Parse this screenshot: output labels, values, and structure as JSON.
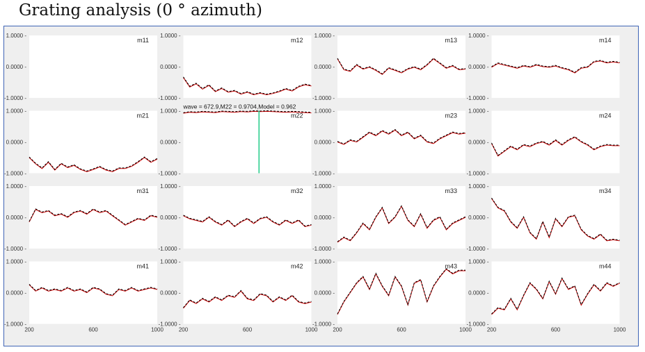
{
  "page": {
    "title": "Grating analysis (0 ° azimuth)"
  },
  "chart_data": {
    "type": "line",
    "grid_rows": 4,
    "grid_cols": 4,
    "xlim": [
      200,
      1000
    ],
    "ylim": [
      -1,
      1
    ],
    "x_ticks": [
      "200",
      "600",
      "1000"
    ],
    "y_ticks": [
      "1.0000",
      "0.0000",
      "-1.0000"
    ],
    "colors": {
      "measured": "#cc0000",
      "model": "#000000",
      "cursor": "#22cc88",
      "frame": "#3f64b5"
    },
    "series_names": [],
    "tooltip": "wave = 672.9,M22 = 0.9704,Model = 0.962",
    "cursor": {
      "panel": "m22",
      "x": 672.9
    },
    "panels": [
      {
        "label": "m11",
        "x": [],
        "y": []
      },
      {
        "label": "m12",
        "x": [
          200,
          240,
          280,
          320,
          360,
          400,
          440,
          480,
          520,
          560,
          600,
          640,
          680,
          720,
          760,
          800,
          840,
          880,
          920,
          960,
          1000
        ],
        "y": [
          -0.35,
          -0.65,
          -0.55,
          -0.72,
          -0.6,
          -0.8,
          -0.7,
          -0.82,
          -0.78,
          -0.88,
          -0.82,
          -0.9,
          -0.85,
          -0.9,
          -0.86,
          -0.8,
          -0.72,
          -0.78,
          -0.65,
          -0.58,
          -0.62
        ]
      },
      {
        "label": "m13",
        "x": [
          200,
          240,
          280,
          320,
          360,
          400,
          440,
          480,
          520,
          560,
          600,
          640,
          680,
          720,
          760,
          800,
          840,
          880,
          920,
          960,
          1000
        ],
        "y": [
          0.25,
          -0.1,
          -0.15,
          0.05,
          -0.08,
          -0.02,
          -0.12,
          -0.25,
          -0.05,
          -0.12,
          -0.2,
          -0.08,
          -0.02,
          -0.1,
          0.05,
          0.25,
          0.1,
          -0.05,
          0.02,
          -0.1,
          -0.08
        ]
      },
      {
        "label": "m14",
        "x": [
          200,
          240,
          280,
          320,
          360,
          400,
          440,
          480,
          520,
          560,
          600,
          640,
          680,
          720,
          760,
          800,
          840,
          880,
          920,
          960,
          1000
        ],
        "y": [
          -0.02,
          0.1,
          0.05,
          0.0,
          -0.05,
          0.02,
          -0.02,
          0.05,
          0.0,
          -0.02,
          0.02,
          -0.05,
          -0.1,
          -0.2,
          -0.05,
          -0.02,
          0.15,
          0.18,
          0.12,
          0.15,
          0.12
        ]
      },
      {
        "label": "m21",
        "x": [
          200,
          240,
          280,
          320,
          360,
          400,
          440,
          480,
          520,
          560,
          600,
          640,
          680,
          720,
          760,
          800,
          840,
          880,
          920,
          960,
          1000
        ],
        "y": [
          -0.5,
          -0.7,
          -0.85,
          -0.65,
          -0.9,
          -0.7,
          -0.82,
          -0.75,
          -0.88,
          -0.95,
          -0.88,
          -0.8,
          -0.9,
          -0.95,
          -0.85,
          -0.85,
          -0.78,
          -0.65,
          -0.5,
          -0.65,
          -0.55
        ]
      },
      {
        "label": "m22",
        "x": [
          200,
          240,
          280,
          320,
          360,
          400,
          440,
          480,
          520,
          560,
          600,
          640,
          680,
          720,
          760,
          800,
          840,
          880,
          920,
          960,
          1000
        ],
        "y": [
          0.92,
          0.95,
          0.94,
          0.96,
          0.95,
          0.94,
          0.97,
          0.96,
          0.95,
          0.97,
          0.96,
          0.98,
          0.97,
          0.98,
          0.97,
          0.96,
          0.95,
          0.96,
          0.95,
          0.94,
          0.93
        ]
      },
      {
        "label": "m23",
        "x": [
          200,
          240,
          280,
          320,
          360,
          400,
          440,
          480,
          520,
          560,
          600,
          640,
          680,
          720,
          760,
          800,
          840,
          880,
          920,
          960,
          1000
        ],
        "y": [
          0.0,
          -0.08,
          0.05,
          0.0,
          0.15,
          0.3,
          0.2,
          0.35,
          0.25,
          0.38,
          0.2,
          0.3,
          0.1,
          0.2,
          0.0,
          -0.05,
          0.1,
          0.2,
          0.3,
          0.25,
          0.28
        ]
      },
      {
        "label": "m24",
        "x": [
          200,
          240,
          280,
          320,
          360,
          400,
          440,
          480,
          520,
          560,
          600,
          640,
          680,
          720,
          760,
          800,
          840,
          880,
          920,
          960,
          1000
        ],
        "y": [
          -0.05,
          -0.45,
          -0.3,
          -0.15,
          -0.25,
          -0.1,
          -0.15,
          -0.05,
          0.0,
          -0.1,
          0.05,
          -0.1,
          0.05,
          0.15,
          0.0,
          -0.1,
          -0.25,
          -0.15,
          -0.1,
          -0.12,
          -0.12
        ]
      },
      {
        "label": "m31",
        "x": [
          200,
          240,
          280,
          320,
          360,
          400,
          440,
          480,
          520,
          560,
          600,
          640,
          680,
          720,
          760,
          800,
          840,
          880,
          920,
          960,
          1000
        ],
        "y": [
          -0.15,
          0.25,
          0.15,
          0.2,
          0.05,
          0.1,
          0.0,
          0.15,
          0.2,
          0.1,
          0.25,
          0.15,
          0.2,
          0.05,
          -0.1,
          -0.25,
          -0.15,
          -0.05,
          -0.1,
          0.05,
          0.0
        ]
      },
      {
        "label": "m32",
        "x": [
          200,
          240,
          280,
          320,
          360,
          400,
          440,
          480,
          520,
          560,
          600,
          640,
          680,
          720,
          760,
          800,
          840,
          880,
          920,
          960,
          1000
        ],
        "y": [
          0.05,
          -0.05,
          -0.1,
          -0.15,
          0.0,
          -0.15,
          -0.25,
          -0.1,
          -0.3,
          -0.15,
          -0.05,
          -0.2,
          -0.05,
          0.0,
          -0.15,
          -0.25,
          -0.1,
          -0.2,
          -0.1,
          -0.3,
          -0.25
        ]
      },
      {
        "label": "m33",
        "x": [
          200,
          240,
          280,
          320,
          360,
          400,
          440,
          480,
          520,
          560,
          600,
          640,
          680,
          720,
          760,
          800,
          840,
          880,
          920,
          960,
          1000
        ],
        "y": [
          -0.8,
          -0.65,
          -0.75,
          -0.5,
          -0.2,
          -0.4,
          0.0,
          0.3,
          -0.2,
          0.0,
          0.35,
          -0.1,
          -0.3,
          0.1,
          -0.35,
          -0.1,
          0.0,
          -0.4,
          -0.2,
          -0.1,
          0.0
        ]
      },
      {
        "label": "m34",
        "x": [
          200,
          240,
          280,
          320,
          360,
          400,
          440,
          480,
          520,
          560,
          600,
          640,
          680,
          720,
          760,
          800,
          840,
          880,
          920,
          960,
          1000
        ],
        "y": [
          0.6,
          0.3,
          0.2,
          -0.15,
          -0.35,
          0.0,
          -0.5,
          -0.7,
          -0.15,
          -0.65,
          -0.05,
          -0.3,
          0.0,
          0.05,
          -0.4,
          -0.6,
          -0.7,
          -0.55,
          -0.75,
          -0.72,
          -0.75
        ]
      },
      {
        "label": "m41",
        "x": [
          200,
          240,
          280,
          320,
          360,
          400,
          440,
          480,
          520,
          560,
          600,
          640,
          680,
          720,
          760,
          800,
          840,
          880,
          920,
          960,
          1000
        ],
        "y": [
          0.25,
          0.05,
          0.15,
          0.05,
          0.1,
          0.05,
          0.15,
          0.05,
          0.1,
          0.0,
          0.15,
          0.1,
          -0.05,
          -0.1,
          0.1,
          0.05,
          0.15,
          0.05,
          0.1,
          0.15,
          0.1
        ]
      },
      {
        "label": "m42",
        "x": [
          200,
          240,
          280,
          320,
          360,
          400,
          440,
          480,
          520,
          560,
          600,
          640,
          680,
          720,
          760,
          800,
          840,
          880,
          920,
          960,
          1000
        ],
        "y": [
          -0.5,
          -0.25,
          -0.35,
          -0.2,
          -0.3,
          -0.15,
          -0.25,
          -0.1,
          -0.15,
          0.05,
          -0.2,
          -0.25,
          -0.05,
          -0.1,
          -0.3,
          -0.15,
          -0.25,
          -0.1,
          -0.3,
          -0.35,
          -0.3
        ]
      },
      {
        "label": "m43",
        "x": [
          200,
          240,
          280,
          320,
          360,
          400,
          440,
          480,
          520,
          560,
          600,
          640,
          680,
          720,
          760,
          800,
          840,
          880,
          920,
          960,
          1000
        ],
        "y": [
          -0.7,
          -0.3,
          0.0,
          0.3,
          0.5,
          0.1,
          0.6,
          0.2,
          -0.1,
          0.5,
          0.2,
          -0.4,
          0.3,
          0.4,
          -0.3,
          0.2,
          0.5,
          0.75,
          0.6,
          0.7,
          0.7
        ]
      },
      {
        "label": "m44",
        "x": [
          200,
          240,
          280,
          320,
          360,
          400,
          440,
          480,
          520,
          560,
          600,
          640,
          680,
          720,
          760,
          800,
          840,
          880,
          920,
          960,
          1000
        ],
        "y": [
          -0.7,
          -0.5,
          -0.55,
          -0.2,
          -0.55,
          -0.1,
          0.3,
          0.1,
          -0.2,
          0.35,
          -0.05,
          0.45,
          0.1,
          0.2,
          -0.4,
          -0.05,
          0.25,
          0.05,
          0.3,
          0.2,
          0.3
        ]
      }
    ]
  }
}
